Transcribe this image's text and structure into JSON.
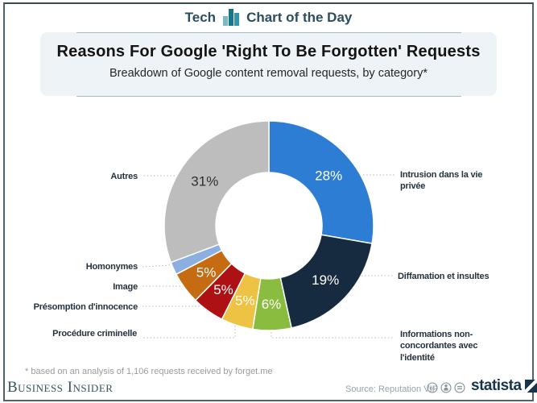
{
  "header": {
    "category": "Tech",
    "series": "Chart of the Day"
  },
  "title": "Reasons For Google 'Right To Be Forgotten' Requests",
  "subtitle": "Breakdown of Google content removal requests, by category*",
  "chart_data": {
    "type": "pie",
    "variant": "donut",
    "title": "Reasons For Google 'Right To Be Forgotten' Requests",
    "subtitle": "Breakdown of Google content removal requests, by category*",
    "unit": "%",
    "order": "clockwise-from-top",
    "slices": [
      {
        "label": "Intrusion dans la vie privée",
        "value": 28,
        "display": "28%",
        "color": "#2d7dd4",
        "pct_color": "#ffffff"
      },
      {
        "label": "Diffamation et insultes",
        "value": 19,
        "display": "19%",
        "color": "#162b3f",
        "pct_color": "#ffffff"
      },
      {
        "label": "Informations non-concordantes avec l'identité",
        "value": 6,
        "display": "6%",
        "color": "#8abc3f",
        "pct_color": "#ffffff"
      },
      {
        "label": "Procédure criminelle",
        "value": 5,
        "display": "5%",
        "color": "#eec243",
        "pct_color": "#ffffff"
      },
      {
        "label": "Présomption d'innocence",
        "value": 5,
        "display": "5%",
        "color": "#ae1113",
        "pct_color": "#ffffff"
      },
      {
        "label": "Image",
        "value": 5,
        "display": "5%",
        "color": "#c56b12",
        "pct_color": "#ffffff"
      },
      {
        "label": "Homonymes",
        "value": 2,
        "display": "",
        "color": "#8cafe2",
        "pct_color": "#ffffff"
      },
      {
        "label": "Autres",
        "value": 31,
        "display": "31%",
        "color": "#bdbdbd",
        "pct_color": "#2f2f2f"
      }
    ]
  },
  "footnote": "* based on an analysis of 1,106 requests received by forget.me",
  "footer": {
    "publisher": "Business Insider",
    "source": "Source: Reputation VIP",
    "license_icons": [
      "cc-license-icon",
      "attribution-icon",
      "no-derivatives-icon"
    ],
    "brand": "statista"
  }
}
